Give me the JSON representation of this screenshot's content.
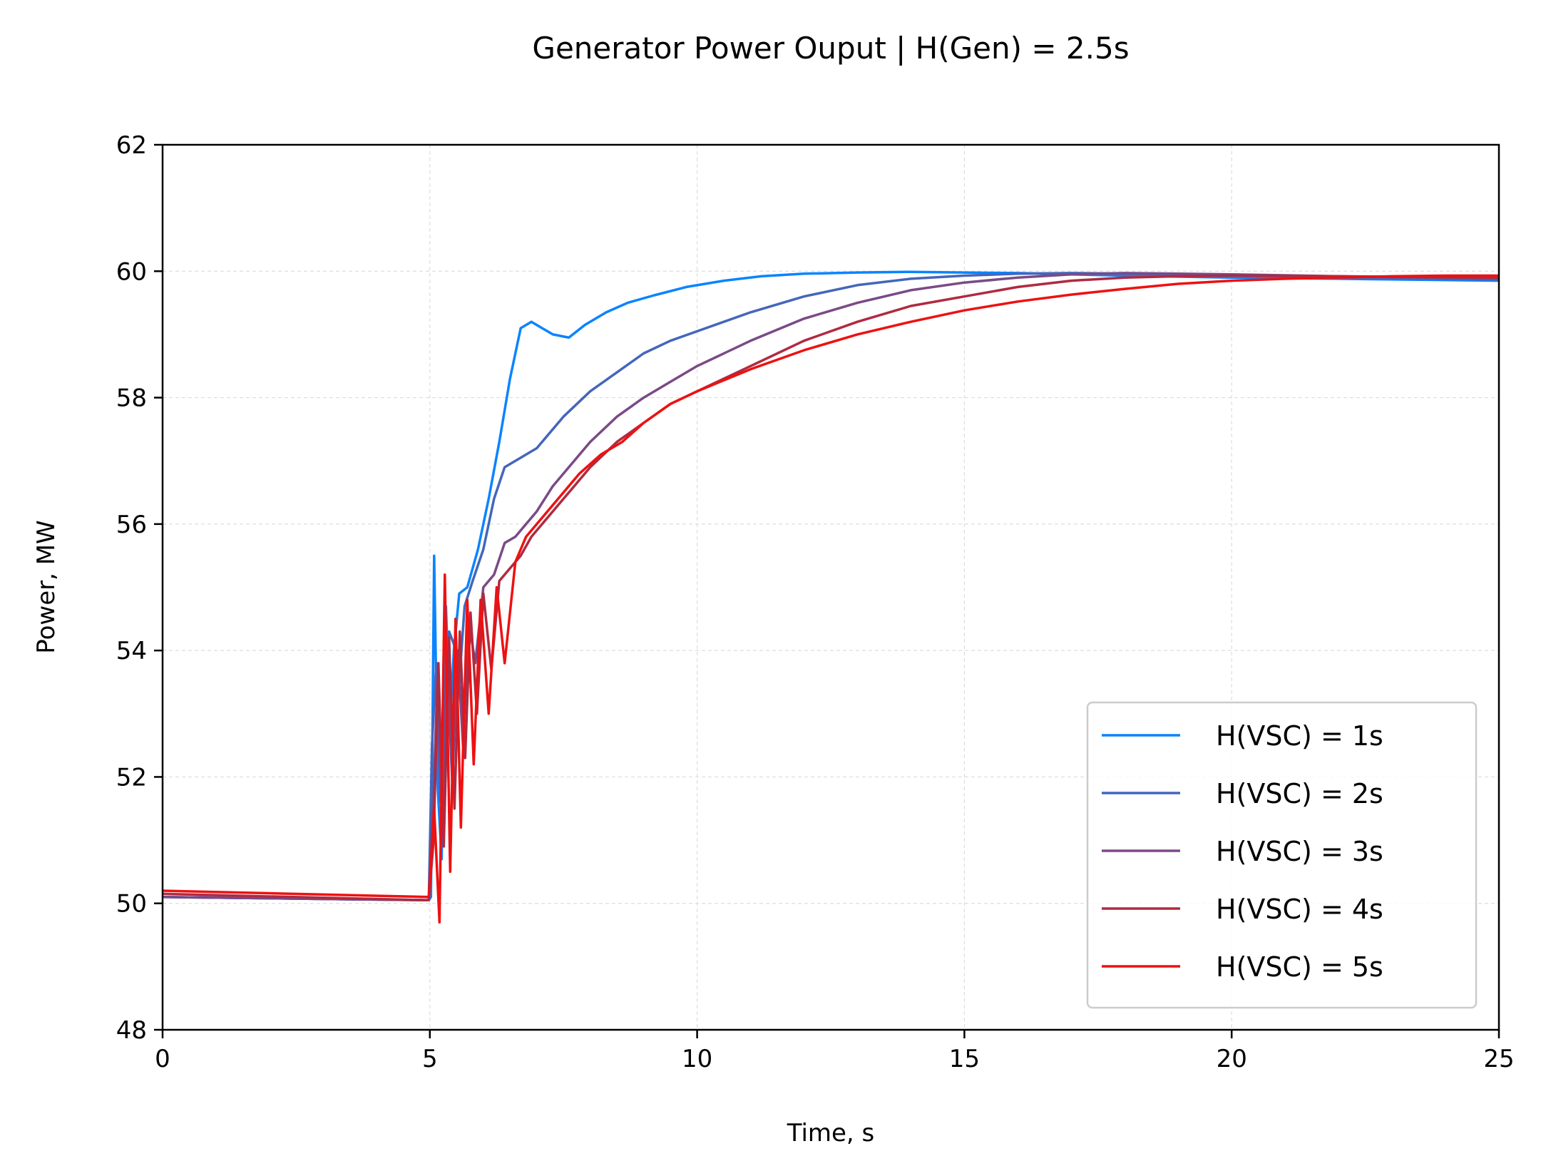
{
  "chart_data": {
    "type": "line",
    "title": "Generator Power Ouput  |  H(Gen) = 2.5s",
    "xlabel": "Time, s",
    "ylabel": "Power, MW",
    "xlim": [
      0,
      25
    ],
    "ylim": [
      48,
      62
    ],
    "xticks": [
      0,
      5,
      10,
      15,
      20,
      25
    ],
    "yticks": [
      48,
      50,
      52,
      54,
      56,
      58,
      60,
      62
    ],
    "grid": true,
    "legend_position": "lower-right",
    "series": [
      {
        "name": "H(VSC) = 1s",
        "color": "#0a84ff",
        "x": [
          0,
          4.98,
          5.02,
          5.08,
          5.15,
          5.22,
          5.3,
          5.38,
          5.45,
          5.55,
          5.7,
          5.9,
          6.1,
          6.3,
          6.5,
          6.7,
          6.9,
          7.1,
          7.3,
          7.6,
          7.9,
          8.3,
          8.7,
          9.2,
          9.8,
          10.5,
          11.2,
          12,
          13,
          14,
          15,
          16,
          17,
          18,
          20,
          22,
          25
        ],
        "y": [
          50.1,
          50.05,
          50.1,
          55.5,
          51.8,
          50.7,
          54.7,
          52.9,
          54.0,
          54.9,
          55.0,
          55.6,
          56.4,
          57.3,
          58.3,
          59.1,
          59.2,
          59.1,
          59.0,
          58.95,
          59.15,
          59.35,
          59.5,
          59.62,
          59.75,
          59.85,
          59.92,
          59.96,
          59.98,
          59.99,
          59.98,
          59.97,
          59.95,
          59.93,
          59.9,
          59.88,
          59.85
        ]
      },
      {
        "name": "H(VSC) = 2s",
        "color": "#4466bb",
        "x": [
          0,
          4.98,
          5.04,
          5.12,
          5.2,
          5.28,
          5.36,
          5.45,
          5.55,
          5.65,
          5.8,
          6.0,
          6.2,
          6.4,
          6.6,
          7.0,
          7.5,
          8.0,
          8.5,
          9.0,
          9.5,
          10,
          11,
          12,
          13,
          14,
          15,
          16,
          17,
          18,
          20,
          22,
          25
        ],
        "y": [
          50.1,
          50.05,
          52.5,
          53.8,
          51.6,
          53.3,
          54.3,
          54.1,
          53.5,
          54.7,
          55.1,
          55.6,
          56.4,
          56.9,
          57.0,
          57.2,
          57.7,
          58.1,
          58.4,
          58.7,
          58.9,
          59.05,
          59.35,
          59.6,
          59.78,
          59.88,
          59.93,
          59.96,
          59.97,
          59.96,
          59.93,
          59.9,
          59.87
        ]
      },
      {
        "name": "H(VSC) = 3s",
        "color": "#7a4a86",
        "x": [
          0,
          4.98,
          5.06,
          5.14,
          5.23,
          5.32,
          5.42,
          5.52,
          5.62,
          5.72,
          5.85,
          6.0,
          6.2,
          6.4,
          6.6,
          6.8,
          7.0,
          7.3,
          7.6,
          8.0,
          8.5,
          9.0,
          9.5,
          10,
          11,
          12,
          13,
          14,
          15,
          16,
          17,
          18,
          19,
          20,
          22,
          25
        ],
        "y": [
          50.1,
          50.05,
          51.5,
          53.5,
          51.3,
          53.8,
          51.9,
          54.0,
          52.5,
          54.5,
          53.8,
          55.0,
          55.2,
          55.7,
          55.8,
          56.0,
          56.2,
          56.6,
          56.9,
          57.3,
          57.7,
          58.0,
          58.25,
          58.5,
          58.9,
          59.25,
          59.5,
          59.7,
          59.82,
          59.9,
          59.95,
          59.97,
          59.96,
          59.95,
          59.92,
          59.88
        ]
      },
      {
        "name": "H(VSC) = 4s",
        "color": "#b02a40",
        "x": [
          0,
          4.98,
          5.07,
          5.16,
          5.26,
          5.36,
          5.46,
          5.56,
          5.66,
          5.76,
          5.88,
          6.0,
          6.15,
          6.3,
          6.5,
          6.7,
          6.9,
          7.1,
          7.4,
          7.7,
          8.0,
          8.5,
          9.0,
          9.5,
          10,
          11,
          12,
          13,
          14,
          15,
          16,
          17,
          18,
          19,
          20,
          22,
          25
        ],
        "y": [
          50.15,
          50.05,
          51.0,
          53.8,
          50.9,
          54.2,
          51.5,
          54.3,
          52.3,
          54.6,
          53.0,
          54.9,
          53.7,
          55.1,
          55.3,
          55.5,
          55.8,
          56.0,
          56.3,
          56.6,
          56.9,
          57.3,
          57.6,
          57.9,
          58.1,
          58.5,
          58.9,
          59.2,
          59.45,
          59.6,
          59.75,
          59.85,
          59.9,
          59.92,
          59.93,
          59.92,
          59.9
        ]
      },
      {
        "name": "H(VSC) = 5s",
        "color": "#ee1111",
        "x": [
          0,
          4.98,
          5.08,
          5.18,
          5.28,
          5.38,
          5.48,
          5.58,
          5.7,
          5.82,
          5.95,
          6.1,
          6.25,
          6.4,
          6.6,
          6.8,
          7.0,
          7.2,
          7.5,
          7.8,
          8.2,
          8.6,
          9.0,
          9.5,
          10,
          11,
          12,
          13,
          14,
          15,
          16,
          17,
          18,
          19,
          20,
          21,
          22,
          23,
          24,
          25
        ],
        "y": [
          50.2,
          50.1,
          51.5,
          49.7,
          55.2,
          50.5,
          54.5,
          51.2,
          54.8,
          52.2,
          54.8,
          53.0,
          55.0,
          53.8,
          55.4,
          55.8,
          56.0,
          56.2,
          56.5,
          56.8,
          57.1,
          57.3,
          57.6,
          57.9,
          58.1,
          58.45,
          58.75,
          59.0,
          59.2,
          59.38,
          59.52,
          59.63,
          59.72,
          59.8,
          59.85,
          59.88,
          59.9,
          59.92,
          59.93,
          59.93
        ]
      }
    ]
  }
}
